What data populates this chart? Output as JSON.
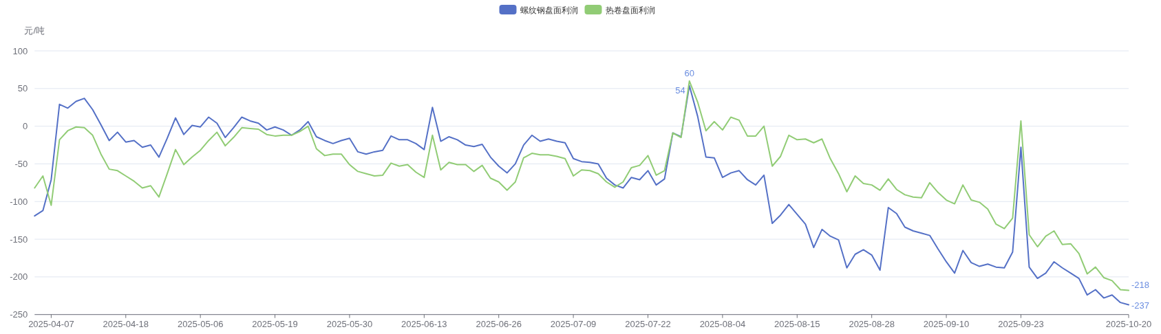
{
  "chart_data": {
    "type": "line",
    "ylabel": "元/吨",
    "categories": [
      null,
      null,
      "2025-04-07",
      null,
      null,
      null,
      null,
      null,
      null,
      null,
      null,
      "2025-04-18",
      null,
      null,
      null,
      null,
      null,
      null,
      null,
      null,
      "2025-05-06",
      null,
      null,
      null,
      null,
      null,
      null,
      null,
      null,
      "2025-05-19",
      null,
      null,
      null,
      null,
      null,
      null,
      null,
      null,
      "2025-05-30",
      null,
      null,
      null,
      null,
      null,
      null,
      null,
      null,
      "2025-06-13",
      null,
      null,
      null,
      null,
      null,
      null,
      null,
      null,
      "2025-06-26",
      null,
      null,
      null,
      null,
      null,
      null,
      null,
      null,
      "2025-07-09",
      null,
      null,
      null,
      null,
      null,
      null,
      null,
      null,
      "2025-07-22",
      null,
      null,
      null,
      null,
      null,
      null,
      null,
      null,
      "2025-08-04",
      null,
      null,
      null,
      null,
      null,
      null,
      null,
      null,
      "2025-08-15",
      null,
      null,
      null,
      null,
      null,
      null,
      null,
      null,
      "2025-08-28",
      null,
      null,
      null,
      null,
      null,
      null,
      null,
      null,
      "2025-09-10",
      null,
      null,
      null,
      null,
      null,
      null,
      null,
      null,
      "2025-09-23",
      null,
      null,
      null,
      null,
      null,
      null,
      null,
      null,
      null,
      null,
      null,
      null,
      "2025-10-20"
    ],
    "series": [
      {
        "name": "螺纹钢盘面利润",
        "color": "#5470c6",
        "values": [
          -119,
          -112,
          -71,
          29,
          24,
          33,
          37,
          22,
          2,
          -19,
          -8,
          -21,
          -19,
          -28,
          -25,
          -41,
          -16,
          11,
          -11,
          1,
          -1,
          12,
          4,
          -15,
          -2,
          12,
          7,
          4,
          -5,
          -1,
          -5,
          -12,
          -5,
          6,
          -14,
          -19,
          -23,
          -19,
          -16,
          -34,
          -37,
          -34,
          -32,
          -13,
          -18,
          -18,
          -23,
          -31,
          25,
          -20,
          -14,
          -18,
          -25,
          -27,
          -24,
          -41,
          -53,
          -62,
          -50,
          -25,
          -12,
          -20,
          -17,
          -20,
          -22,
          -43,
          -47,
          -48,
          -50,
          -69,
          -78,
          -82,
          -68,
          -71,
          -59,
          -78,
          -70,
          -9,
          -14,
          54,
          13,
          -41,
          -42,
          -68,
          -62,
          -59,
          -71,
          -78,
          -65,
          -129,
          -118,
          -104,
          -117,
          -130,
          -161,
          -137,
          -146,
          -151,
          -188,
          -170,
          -164,
          -171,
          -191,
          -108,
          -116,
          -134,
          -139,
          -142,
          -145,
          -163,
          -180,
          -195,
          -165,
          -181,
          -186,
          -183,
          -187,
          -188,
          -167,
          -28,
          -187,
          -202,
          -195,
          -180,
          -188,
          -195,
          -202,
          -224,
          -217,
          -228,
          -224,
          -234,
          -237
        ],
        "value_labels": [
          null,
          null,
          null,
          null,
          null,
          null,
          null,
          null,
          null,
          null,
          null,
          null,
          null,
          null,
          null,
          null,
          null,
          null,
          null,
          null,
          null,
          null,
          null,
          null,
          null,
          null,
          null,
          null,
          null,
          null,
          null,
          null,
          null,
          null,
          null,
          null,
          null,
          null,
          null,
          null,
          null,
          null,
          null,
          null,
          null,
          null,
          null,
          null,
          null,
          null,
          null,
          null,
          null,
          null,
          null,
          null,
          null,
          null,
          null,
          null,
          null,
          null,
          null,
          null,
          null,
          null,
          null,
          null,
          null,
          null,
          null,
          null,
          null,
          null,
          null,
          null,
          null,
          null,
          null,
          "54",
          null,
          null,
          null,
          null,
          null,
          null,
          null,
          null,
          null,
          null,
          null,
          null,
          null,
          null,
          null,
          null,
          null,
          null,
          null,
          null,
          null,
          null,
          null,
          null,
          null,
          null,
          null,
          null,
          null,
          null,
          null,
          null,
          null,
          null,
          null,
          null,
          null,
          null,
          null,
          null,
          null,
          null,
          null,
          null,
          null,
          null,
          null,
          null,
          null,
          null,
          null,
          null,
          "-237"
        ]
      },
      {
        "name": "热卷盘面利润",
        "color": "#91cc75",
        "values": [
          -82,
          -66,
          -105,
          -18,
          -6,
          -1,
          -2,
          -12,
          -37,
          -57,
          -59,
          -66,
          -73,
          -82,
          -79,
          -94,
          -63,
          -31,
          -51,
          -41,
          -32,
          -19,
          -8,
          -26,
          -15,
          -2,
          -3,
          -4,
          -11,
          -13,
          -12,
          -12,
          -7,
          0,
          -30,
          -39,
          -37,
          -37,
          -51,
          -60,
          -63,
          -66,
          -65,
          -49,
          -53,
          -51,
          -61,
          -68,
          -12,
          -58,
          -48,
          -51,
          -51,
          -60,
          -52,
          -69,
          -74,
          -85,
          -74,
          -42,
          -36,
          -38,
          -38,
          -40,
          -43,
          -66,
          -58,
          -59,
          -63,
          -74,
          -81,
          -74,
          -55,
          -52,
          -39,
          -65,
          -59,
          -9,
          -15,
          60,
          32,
          -6,
          6,
          -5,
          12,
          8,
          -13,
          -13,
          0,
          -53,
          -40,
          -12,
          -18,
          -17,
          -22,
          -17,
          -43,
          -63,
          -87,
          -66,
          -76,
          -78,
          -85,
          -70,
          -84,
          -91,
          -94,
          -95,
          -75,
          -88,
          -98,
          -103,
          -78,
          -98,
          -101,
          -110,
          -130,
          -136,
          -122,
          7,
          -144,
          -160,
          -146,
          -139,
          -157,
          -156,
          -169,
          -196,
          -187,
          -201,
          -205,
          -217,
          -218
        ],
        "value_labels": [
          null,
          null,
          null,
          null,
          null,
          null,
          null,
          null,
          null,
          null,
          null,
          null,
          null,
          null,
          null,
          null,
          null,
          null,
          null,
          null,
          null,
          null,
          null,
          null,
          null,
          null,
          null,
          null,
          null,
          null,
          null,
          null,
          null,
          null,
          null,
          null,
          null,
          null,
          null,
          null,
          null,
          null,
          null,
          null,
          null,
          null,
          null,
          null,
          null,
          null,
          null,
          null,
          null,
          null,
          null,
          null,
          null,
          null,
          null,
          null,
          null,
          null,
          null,
          null,
          null,
          null,
          null,
          null,
          null,
          null,
          null,
          null,
          null,
          null,
          null,
          null,
          null,
          null,
          null,
          "60",
          null,
          null,
          null,
          null,
          null,
          null,
          null,
          null,
          null,
          null,
          null,
          null,
          null,
          null,
          null,
          null,
          null,
          null,
          null,
          null,
          null,
          null,
          null,
          null,
          null,
          null,
          null,
          null,
          null,
          null,
          null,
          null,
          null,
          null,
          null,
          null,
          null,
          null,
          null,
          null,
          null,
          null,
          null,
          null,
          null,
          null,
          null,
          null,
          null,
          null,
          null,
          null,
          "-218"
        ]
      }
    ],
    "ylim": [
      -250,
      100
    ],
    "yticks": [
      -250,
      -200,
      -150,
      -100,
      -50,
      0,
      50,
      100
    ],
    "grid": "y",
    "legend": "top",
    "marker": "none",
    "line_style": "solid"
  }
}
